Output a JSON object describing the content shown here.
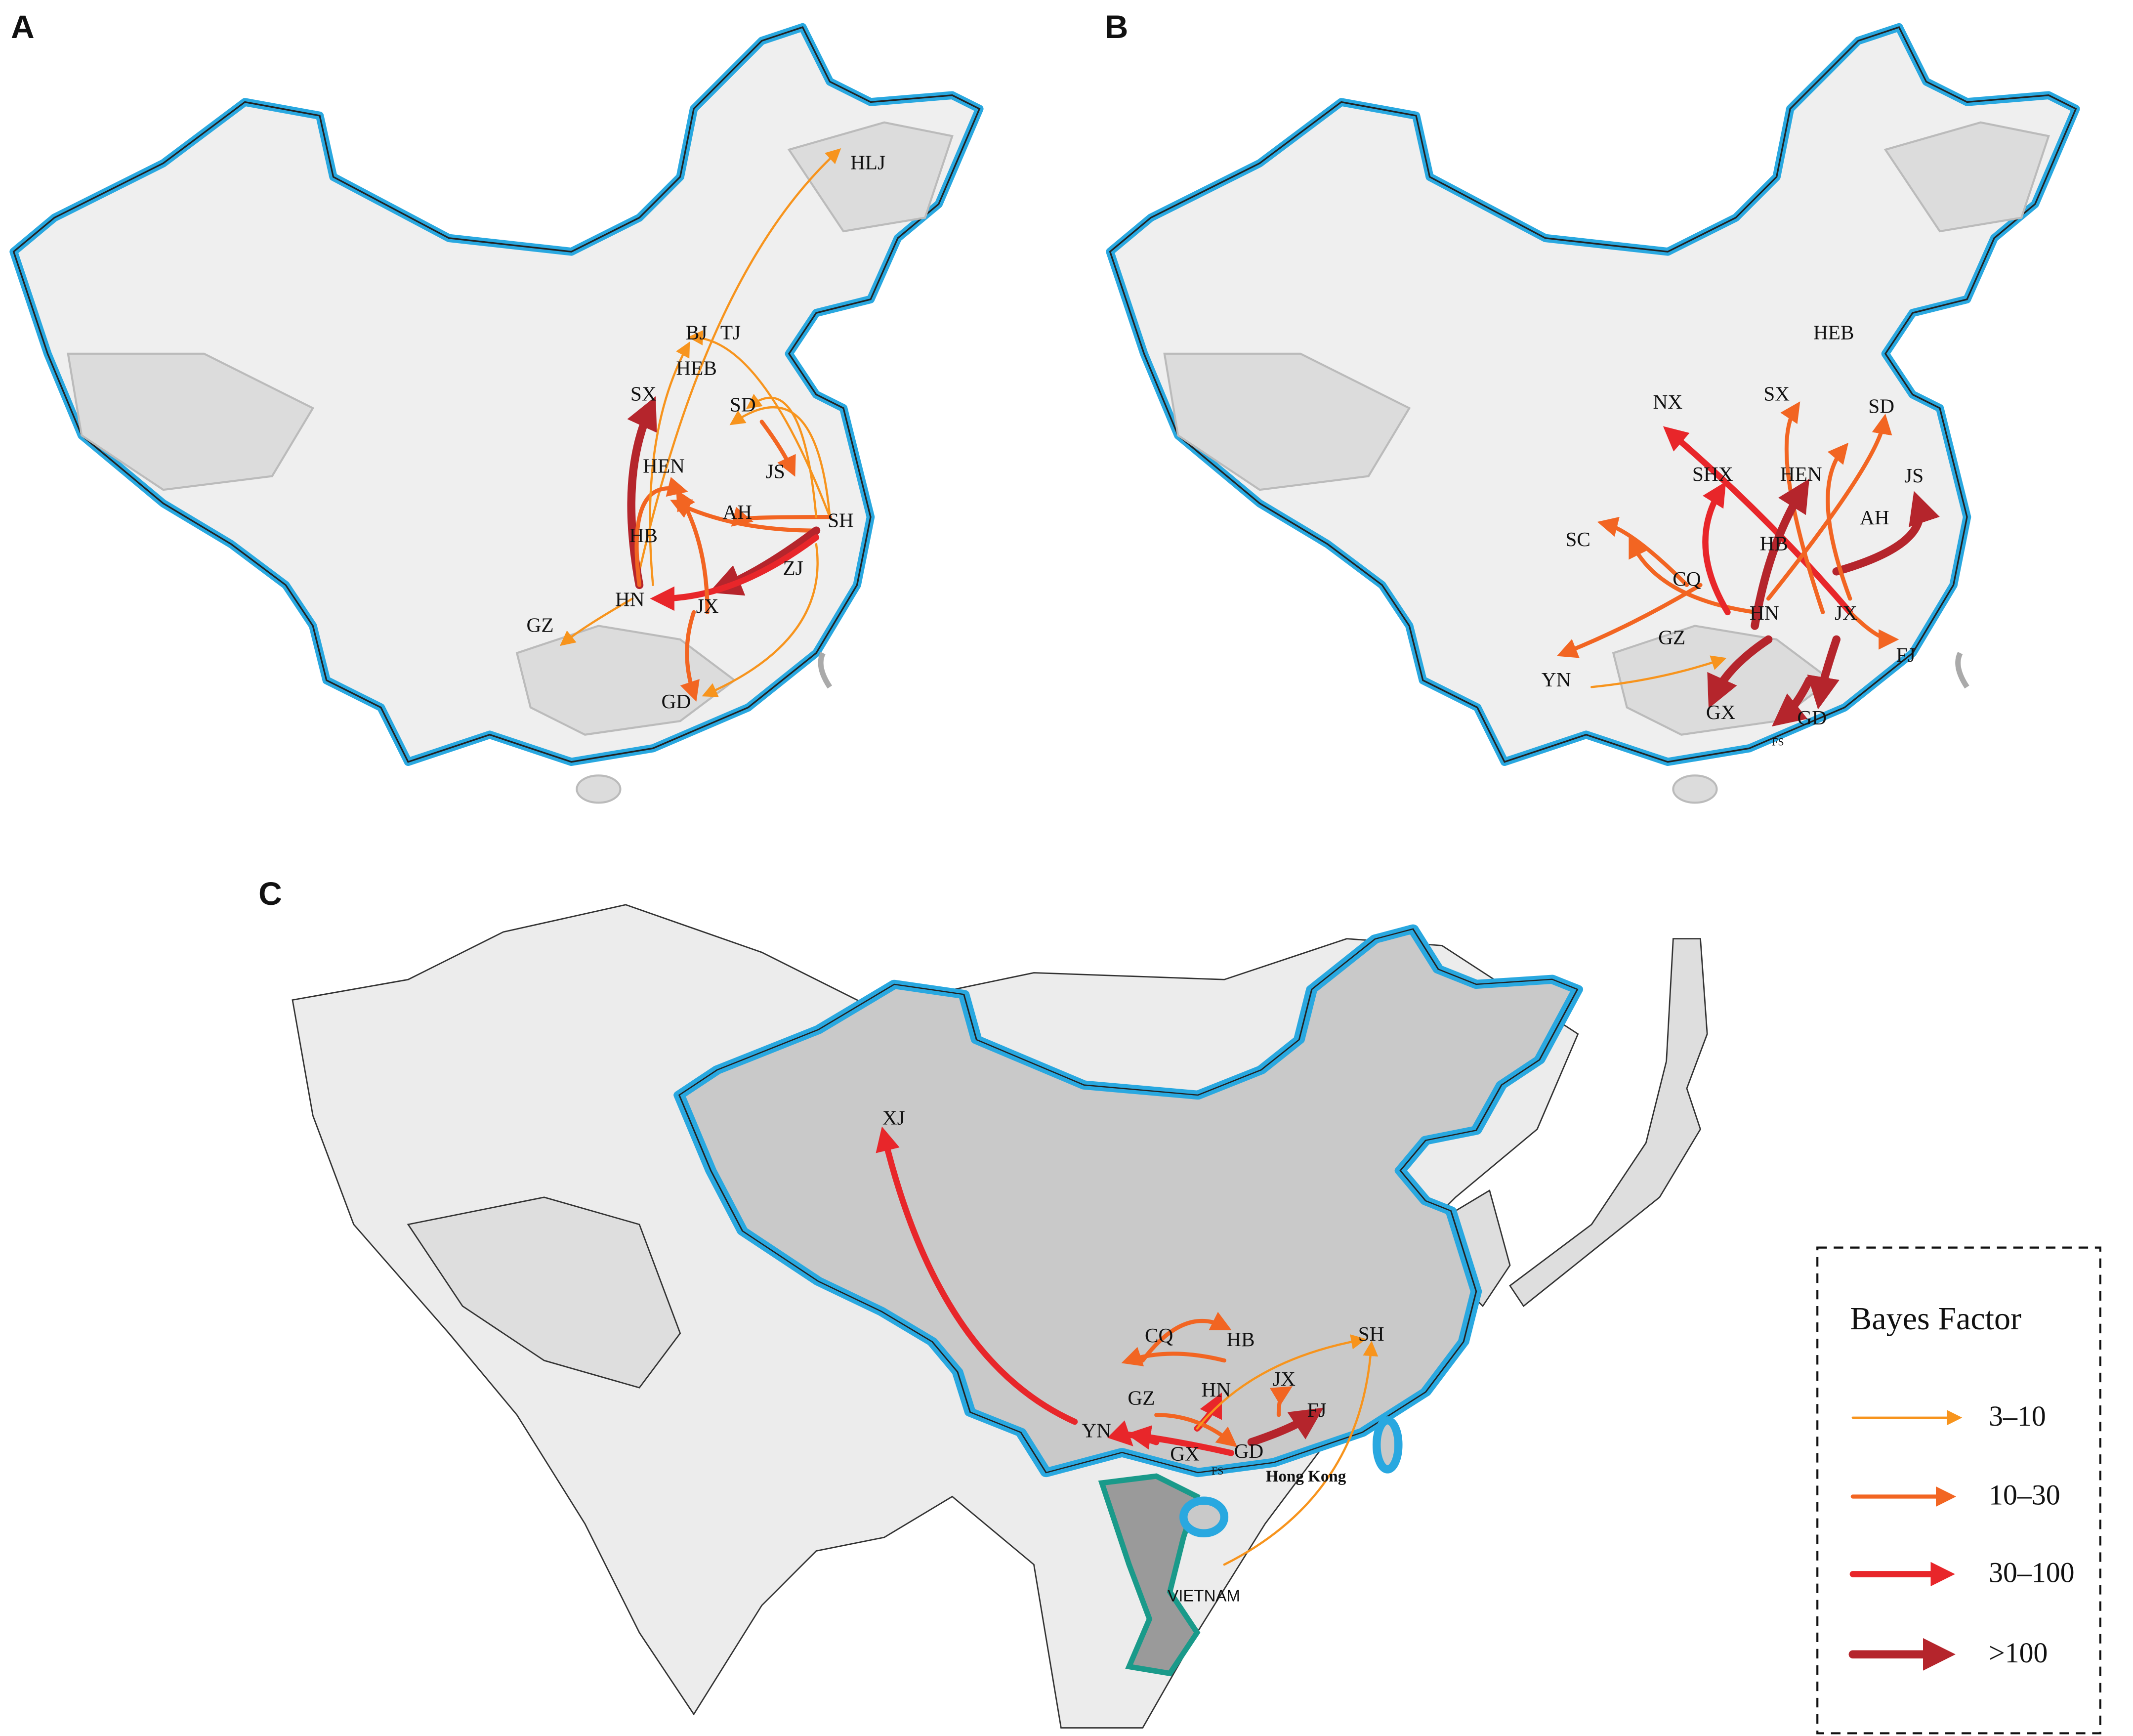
{
  "panels": [
    {
      "letter": "A",
      "places": [
        "HLJ",
        "BJ",
        "TJ",
        "HEB",
        "SX",
        "SD",
        "JS",
        "HEN",
        "AH",
        "SH",
        "HB",
        "ZJ",
        "HN",
        "JX",
        "GZ",
        "GD"
      ]
    },
    {
      "letter": "B",
      "places": [
        "HEB",
        "SX",
        "SD",
        "NX",
        "JS",
        "SHX",
        "HEN",
        "AH",
        "SC",
        "HB",
        "CQ",
        "HN",
        "JX",
        "GZ",
        "FJ",
        "YN",
        "GX",
        "GD",
        "FS"
      ]
    },
    {
      "letter": "C",
      "places": [
        "XJ",
        "CQ",
        "HB",
        "JX",
        "FJ",
        "SH",
        "GZ",
        "HN",
        "YN",
        "GX",
        "GD",
        "FS",
        "Hong Kong",
        "VIETNAM"
      ]
    }
  ],
  "legend": {
    "title": "Bayes Factor",
    "items": [
      "3–10",
      "10–30",
      "30–100",
      ">100"
    ]
  }
}
